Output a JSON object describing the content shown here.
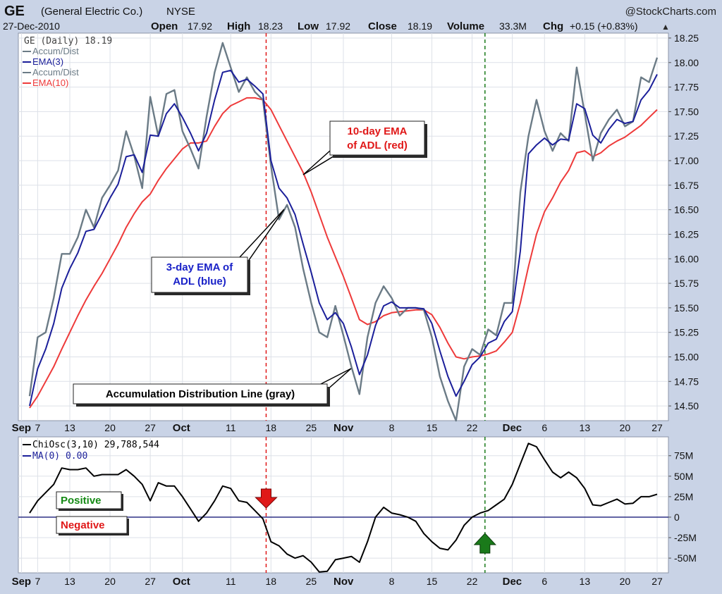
{
  "header": {
    "symbol": "GE",
    "company": "(General Electric Co.)",
    "exchange": "NYSE",
    "date": "27-Dec-2010",
    "watermark": "@StockCharts.com",
    "open_label": "Open",
    "open_value": "17.92",
    "high_label": "High",
    "high_value": "18.23",
    "low_label": "Low",
    "low_value": "17.92",
    "close_label": "Close",
    "close_value": "18.19",
    "volume_label": "Volume",
    "volume_value": "33.3M",
    "chg_label": "Chg",
    "chg_value": "+0.15 (+0.83%)",
    "chg_arrow": "▲"
  },
  "colors": {
    "adl": "#6b7b86",
    "ema3": "#1b1f9a",
    "ema10": "#ee3a3a",
    "osc": "#000000",
    "zero_line": "#1b1f7a",
    "red_marker": "#e01818",
    "green_marker": "#1a7a1a",
    "positive_text": "#158a15",
    "negative_text": "#e01818"
  },
  "chart_data": [
    {
      "type": "line",
      "legend": [
        {
          "text": "GE (Daily) 18.19",
          "color": "#444444"
        },
        {
          "text": "Accum/Dist",
          "color": "#6b7b86"
        },
        {
          "text": "EMA(3)",
          "color": "#1b1f9a"
        },
        {
          "text": "Accum/Dist",
          "color": "#6b7b86"
        },
        {
          "text": "EMA(10)",
          "color": "#ee3a3a"
        }
      ],
      "y_ticks": [
        14.5,
        14.75,
        15,
        15.25,
        15.5,
        15.75,
        16,
        16.25,
        16.5,
        16.75,
        17,
        17.25,
        17.5,
        17.75,
        18,
        18.25
      ],
      "y_tick_labels": [
        "14.50",
        "14.75",
        "15.00",
        "15.25",
        "15.50",
        "15.75",
        "16.00",
        "16.25",
        "16.50",
        "16.75",
        "17.00",
        "17.25",
        "17.50",
        "17.75",
        "18.00",
        "18.25"
      ],
      "ylim": [
        14.35,
        18.3
      ],
      "x_labels": [
        {
          "label": "Sep",
          "day": -1,
          "bold": true
        },
        {
          "label": "7",
          "day": 1
        },
        {
          "label": "13",
          "day": 5
        },
        {
          "label": "20",
          "day": 10
        },
        {
          "label": "27",
          "day": 15
        },
        {
          "label": "Oct",
          "day": 19,
          "bold": true
        },
        {
          "label": "11",
          "day": 25
        },
        {
          "label": "18",
          "day": 30
        },
        {
          "label": "25",
          "day": 35
        },
        {
          "label": "Nov",
          "day": 39,
          "bold": true
        },
        {
          "label": "8",
          "day": 45
        },
        {
          "label": "15",
          "day": 50
        },
        {
          "label": "22",
          "day": 55
        },
        {
          "label": "Dec",
          "day": 60,
          "bold": true
        },
        {
          "label": "6",
          "day": 64
        },
        {
          "label": "13",
          "day": 69
        },
        {
          "label": "20",
          "day": 74
        },
        {
          "label": "27",
          "day": 78
        }
      ],
      "xlim": [
        -1.4,
        79.4
      ],
      "series": [
        {
          "name": "Accum/Dist",
          "key": "adl",
          "values": [
            14.6,
            15.2,
            15.25,
            15.6,
            16.05,
            16.05,
            16.22,
            16.5,
            16.32,
            16.62,
            16.75,
            16.9,
            17.3,
            17.05,
            16.72,
            17.65,
            17.25,
            17.68,
            17.72,
            17.3,
            17.12,
            16.92,
            17.45,
            17.9,
            18.2,
            17.95,
            17.7,
            17.85,
            17.7,
            17.62,
            16.95,
            16.4,
            16.55,
            16.32,
            15.9,
            15.55,
            15.25,
            15.2,
            15.52,
            15.22,
            14.9,
            14.62,
            15.2,
            15.55,
            15.72,
            15.6,
            15.42,
            15.5,
            15.5,
            15.48,
            15.2,
            14.8,
            14.55,
            14.35,
            14.9,
            15.08,
            15.02,
            15.28,
            15.22,
            15.55,
            15.55,
            16.68,
            17.25,
            17.62,
            17.3,
            17.1,
            17.28,
            17.2,
            17.95,
            17.48,
            17.0,
            17.28,
            17.42,
            17.52,
            17.35,
            17.4,
            17.85,
            17.8,
            18.05
          ]
        },
        {
          "name": "EMA(3)",
          "key": "ema3",
          "values": [
            14.5,
            14.88,
            15.08,
            15.34,
            15.7,
            15.9,
            16.06,
            16.28,
            16.3,
            16.46,
            16.62,
            16.76,
            17.04,
            17.06,
            16.88,
            17.26,
            17.25,
            17.48,
            17.58,
            17.44,
            17.28,
            17.1,
            17.28,
            17.62,
            17.9,
            17.92,
            17.8,
            17.83,
            17.76,
            17.68,
            17.0,
            16.72,
            16.62,
            16.45,
            16.15,
            15.86,
            15.55,
            15.38,
            15.45,
            15.34,
            15.1,
            14.82,
            15.02,
            15.32,
            15.52,
            15.56,
            15.5,
            15.5,
            15.5,
            15.49,
            15.34,
            15.06,
            14.8,
            14.6,
            14.75,
            14.92,
            15.0,
            15.14,
            15.18,
            15.36,
            15.46,
            16.08,
            17.07,
            17.16,
            17.23,
            17.16,
            17.22,
            17.21,
            17.58,
            17.53,
            17.26,
            17.18,
            17.32,
            17.42,
            17.38,
            17.4,
            17.62,
            17.72,
            17.88
          ]
        },
        {
          "name": "EMA(10)",
          "key": "ema10",
          "values": [
            14.48,
            14.6,
            14.75,
            14.9,
            15.08,
            15.25,
            15.42,
            15.58,
            15.72,
            15.85,
            16.0,
            16.15,
            16.32,
            16.46,
            16.58,
            16.66,
            16.8,
            16.92,
            17.02,
            17.12,
            17.18,
            17.18,
            17.2,
            17.35,
            17.48,
            17.56,
            17.6,
            17.64,
            17.64,
            17.62,
            17.52,
            17.36,
            17.2,
            17.04,
            16.88,
            16.68,
            16.45,
            16.22,
            16.02,
            15.82,
            15.6,
            15.38,
            15.33,
            15.36,
            15.42,
            15.45,
            15.46,
            15.47,
            15.48,
            15.48,
            15.43,
            15.3,
            15.14,
            15.0,
            14.98,
            15.0,
            15.01,
            15.03,
            15.06,
            15.15,
            15.25,
            15.55,
            15.92,
            16.25,
            16.48,
            16.62,
            16.78,
            16.9,
            17.08,
            17.1,
            17.04,
            17.08,
            17.15,
            17.2,
            17.24,
            17.3,
            17.36,
            17.44,
            17.52
          ]
        }
      ]
    },
    {
      "type": "line",
      "legend": [
        {
          "text": "ChiOsc(3,10) 29,788,544",
          "color": "#000000"
        },
        {
          "text": "MA(0) 0.00",
          "color": "#1b1f9a"
        }
      ],
      "y_ticks": [
        -50,
        -25,
        0,
        25,
        50,
        75
      ],
      "y_tick_labels": [
        "-50M",
        "-25M",
        "0",
        "25M",
        "50M",
        "75M"
      ],
      "ylim": [
        -68,
        98
      ],
      "zero_line": 0,
      "series": [
        {
          "name": "ChiOsc(3,10)",
          "key": "osc",
          "values": [
            5,
            20,
            30,
            40,
            60,
            58,
            58,
            60,
            50,
            52,
            52,
            52,
            58,
            50,
            40,
            20,
            42,
            38,
            38,
            25,
            10,
            -5,
            5,
            20,
            38,
            35,
            20,
            18,
            8,
            -2,
            -30,
            -35,
            -45,
            -50,
            -47,
            -55,
            -67,
            -66,
            -52,
            -50,
            -48,
            -55,
            -30,
            0,
            12,
            5,
            3,
            0,
            -5,
            -20,
            -30,
            -38,
            -40,
            -28,
            -10,
            0,
            5,
            8,
            15,
            22,
            40,
            65,
            90,
            86,
            70,
            55,
            48,
            55,
            48,
            35,
            15,
            14,
            18,
            22,
            16,
            17,
            25,
            25,
            28
          ]
        }
      ],
      "annotations": [
        {
          "text": "Positive",
          "color": "#158a15"
        },
        {
          "text": "Negative",
          "color": "#e01818"
        }
      ]
    }
  ],
  "markers": {
    "red_line_day": 29.4,
    "green_line_day": 56.6
  },
  "callouts": [
    {
      "key": "ema10",
      "line1": "10-day EMA",
      "line2": "of ADL (red)",
      "color": "#e01818"
    },
    {
      "key": "ema3",
      "line1": "3-day EMA of",
      "line2": "ADL (blue)",
      "color": "#1a22c8"
    },
    {
      "key": "adl",
      "line1": "Accumulation Distribution Line (gray)",
      "line2": "",
      "color": "#000000"
    }
  ]
}
